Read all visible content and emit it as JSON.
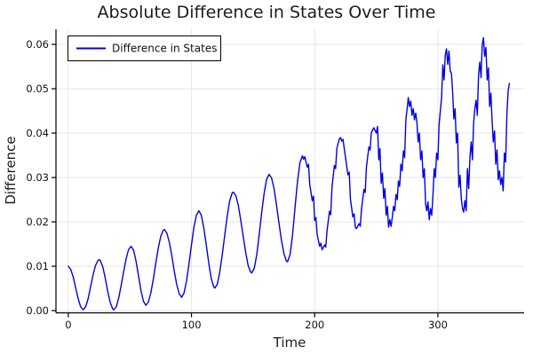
{
  "figure": {
    "title": "Absolute Difference in States Over Time",
    "background": "#ffffff"
  },
  "legend": {
    "items": [
      {
        "label": "Difference in States",
        "color": "#0000e6"
      }
    ]
  },
  "chart_data": {
    "type": "line",
    "title": "Absolute Difference in States Over Time",
    "xlabel": "Time",
    "ylabel": "Difference",
    "xlim": [
      -10,
      370
    ],
    "ylim": [
      -0.0005,
      0.0634
    ],
    "xticks": [
      0,
      100,
      200,
      300
    ],
    "xtick_labels": [
      "0",
      "100",
      "200",
      "300"
    ],
    "yticks": [
      0.0,
      0.01,
      0.02,
      0.03,
      0.04,
      0.05,
      0.06
    ],
    "ytick_labels": [
      "0.00",
      "0.01",
      "0.02",
      "0.03",
      "0.04",
      "0.05",
      "0.06"
    ],
    "grid": true,
    "legend_position": "top-left",
    "colors": {
      "line": "#0000e6",
      "grid": "#e6e6e6",
      "axis": "#000000",
      "text": "#1c1c1c"
    },
    "series": [
      {
        "name": "Difference in States",
        "color": "#0000e6",
        "x": [
          0,
          2,
          4,
          6,
          8,
          10,
          12,
          14,
          16,
          18,
          20,
          22,
          24,
          25,
          26,
          28,
          30,
          32,
          34,
          36,
          37,
          39,
          41,
          43,
          45,
          47,
          49,
          51,
          53,
          55,
          57,
          59,
          61,
          63,
          65,
          67,
          69,
          71,
          73,
          75,
          77,
          78,
          80,
          82,
          84,
          86,
          88,
          90,
          92,
          94,
          96,
          98,
          100,
          102,
          104,
          106,
          108,
          110,
          112,
          114,
          116,
          118,
          119,
          121,
          123,
          125,
          127,
          129,
          131,
          133,
          134,
          136,
          138,
          140,
          142,
          144,
          146,
          148,
          149,
          151,
          153,
          155,
          157,
          159,
          161,
          163,
          165,
          167,
          169,
          171,
          173,
          175,
          177,
          178,
          180,
          182,
          184,
          186,
          188,
          190,
          191,
          192,
          194,
          195,
          196,
          198,
          199,
          200,
          201,
          202,
          204,
          205,
          206,
          208,
          209,
          210,
          212,
          213,
          214,
          216,
          217,
          218,
          220,
          221,
          222,
          223,
          225,
          227,
          228,
          229,
          231,
          232,
          233,
          234,
          236,
          237,
          238,
          240,
          241,
          242,
          244,
          245,
          246,
          248,
          250,
          251,
          252,
          253,
          254,
          255,
          256,
          257,
          258,
          259,
          260,
          261,
          262,
          263,
          264,
          265,
          266,
          267,
          268,
          269,
          270,
          271,
          272,
          273,
          274,
          275,
          276,
          277,
          278,
          279,
          280,
          281,
          282,
          283,
          284,
          285,
          286,
          287,
          288,
          289,
          290,
          291,
          292,
          293,
          294,
          295,
          296,
          297,
          298,
          299,
          300,
          301,
          302,
          303,
          304,
          305,
          306,
          307,
          308,
          309,
          310,
          311,
          312,
          313,
          314,
          315,
          316,
          317,
          318,
          319,
          320,
          321,
          322,
          323,
          324,
          325,
          326,
          327,
          328,
          329,
          330,
          331,
          332,
          333,
          334,
          335,
          336,
          337,
          338,
          339,
          340,
          341,
          342,
          343,
          344,
          345,
          346,
          347,
          348,
          349,
          350,
          351,
          352,
          353,
          354,
          355,
          356,
          357,
          358
        ],
        "y": [
          0.01,
          0.0093,
          0.0076,
          0.0051,
          0.0027,
          0.0009,
          0.0002,
          0.0008,
          0.0026,
          0.0052,
          0.0079,
          0.0101,
          0.0113,
          0.0115,
          0.0113,
          0.0099,
          0.0073,
          0.0044,
          0.0019,
          0.0004,
          0.0002,
          0.0009,
          0.0029,
          0.0058,
          0.0089,
          0.0118,
          0.0138,
          0.0145,
          0.0136,
          0.0112,
          0.0079,
          0.0045,
          0.0021,
          0.0012,
          0.0019,
          0.004,
          0.0071,
          0.0106,
          0.014,
          0.0167,
          0.0181,
          0.0183,
          0.0175,
          0.0154,
          0.0124,
          0.009,
          0.0059,
          0.0038,
          0.003,
          0.004,
          0.0067,
          0.0106,
          0.0149,
          0.0188,
          0.0215,
          0.0225,
          0.0215,
          0.0187,
          0.0148,
          0.0107,
          0.0073,
          0.0054,
          0.0051,
          0.006,
          0.0087,
          0.0126,
          0.017,
          0.0213,
          0.0247,
          0.0265,
          0.0267,
          0.0259,
          0.0237,
          0.0204,
          0.0167,
          0.0131,
          0.0102,
          0.0087,
          0.0085,
          0.0096,
          0.0127,
          0.0171,
          0.0221,
          0.0265,
          0.0296,
          0.0307,
          0.0299,
          0.0275,
          0.0239,
          0.0198,
          0.0159,
          0.0129,
          0.0112,
          0.011,
          0.0126,
          0.017,
          0.023,
          0.0289,
          0.0333,
          0.0349,
          0.0341,
          0.0347,
          0.0323,
          0.033,
          0.0284,
          0.0248,
          0.0258,
          0.0203,
          0.021,
          0.0172,
          0.0145,
          0.0152,
          0.0137,
          0.0148,
          0.0143,
          0.0179,
          0.0224,
          0.0216,
          0.0277,
          0.0327,
          0.032,
          0.0366,
          0.0387,
          0.039,
          0.0382,
          0.0386,
          0.0346,
          0.0306,
          0.0312,
          0.0251,
          0.0211,
          0.0218,
          0.0188,
          0.0185,
          0.0196,
          0.019,
          0.0228,
          0.0273,
          0.0266,
          0.0324,
          0.0369,
          0.0362,
          0.0401,
          0.0412,
          0.04,
          0.0415,
          0.034,
          0.0365,
          0.0287,
          0.031,
          0.0253,
          0.0275,
          0.0215,
          0.0235,
          0.0188,
          0.0205,
          0.019,
          0.021,
          0.0235,
          0.0225,
          0.0262,
          0.025,
          0.0292,
          0.028,
          0.033,
          0.0315,
          0.036,
          0.0345,
          0.043,
          0.0455,
          0.048,
          0.046,
          0.0472,
          0.044,
          0.0455,
          0.043,
          0.0445,
          0.0425,
          0.038,
          0.04,
          0.034,
          0.036,
          0.03,
          0.032,
          0.024,
          0.0225,
          0.0245,
          0.0205,
          0.023,
          0.0215,
          0.026,
          0.032,
          0.03,
          0.0355,
          0.034,
          0.042,
          0.045,
          0.048,
          0.0554,
          0.052,
          0.0575,
          0.059,
          0.0555,
          0.0585,
          0.054,
          0.0535,
          0.049,
          0.0432,
          0.0455,
          0.0378,
          0.04,
          0.0278,
          0.0305,
          0.0252,
          0.023,
          0.0222,
          0.0248,
          0.0225,
          0.032,
          0.0275,
          0.0345,
          0.038,
          0.034,
          0.042,
          0.0455,
          0.0474,
          0.044,
          0.053,
          0.056,
          0.0525,
          0.0598,
          0.0615,
          0.0573,
          0.0593,
          0.052,
          0.0547,
          0.046,
          0.049,
          0.043,
          0.038,
          0.0405,
          0.033,
          0.0362,
          0.0295,
          0.0315,
          0.0284,
          0.03,
          0.027,
          0.0355,
          0.0335,
          0.044,
          0.0495,
          0.0512
        ]
      }
    ]
  }
}
